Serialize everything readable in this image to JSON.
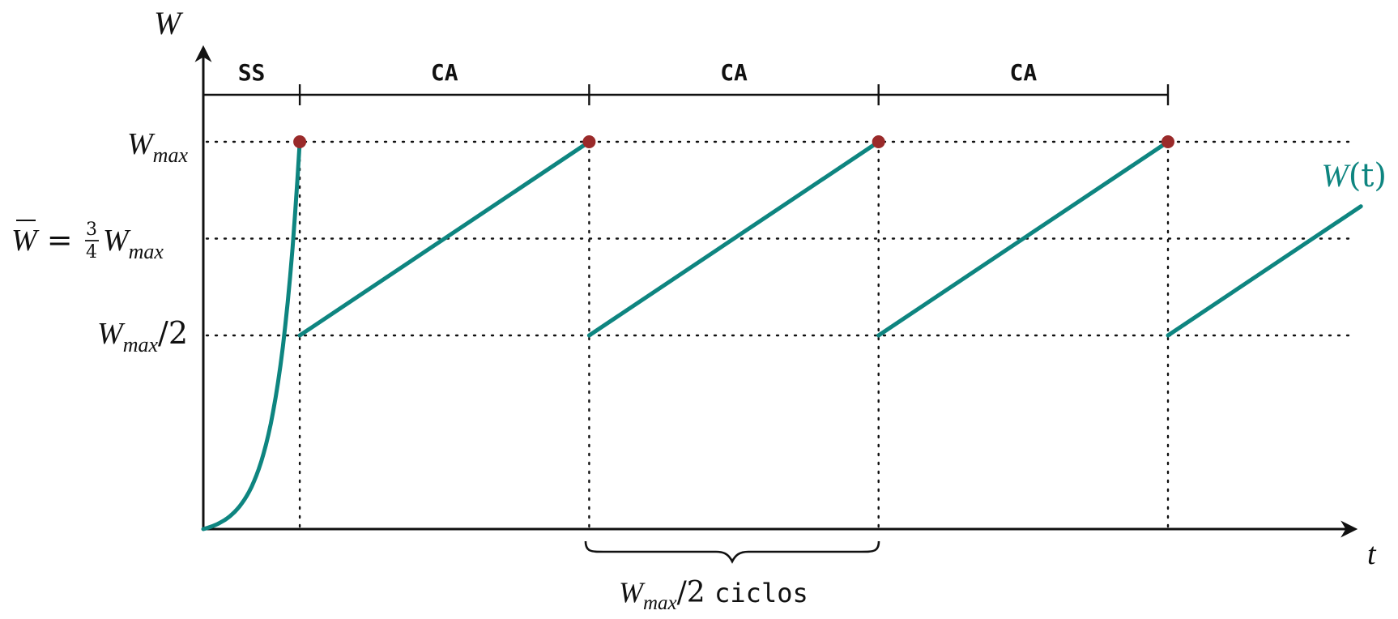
{
  "axes": {
    "y_label": "W",
    "x_label": "t"
  },
  "levels": [
    {
      "id": "wmax",
      "base": "W",
      "sub": "max",
      "suffix": "",
      "value": 1.0
    },
    {
      "id": "wbar",
      "bar_base": "W",
      "eq": " = ",
      "frac_num": "3",
      "frac_den": "4",
      "base": "W",
      "sub": "max",
      "value": 0.75
    },
    {
      "id": "whalf",
      "base": "W",
      "sub": "max",
      "suffix": "/2",
      "value": 0.5
    }
  ],
  "phases": [
    "SS",
    "CA",
    "CA",
    "CA"
  ],
  "brace": {
    "base": "W",
    "sub": "max",
    "suffix": "/2 ",
    "text": "ciclos"
  },
  "series": {
    "name_base": "W",
    "name_rest": "(t)",
    "color": "#0e8580"
  },
  "peak_color": "#9a2a2a",
  "chart_data": {
    "type": "line",
    "title": "",
    "xlabel": "t",
    "ylabel": "W",
    "grid": false,
    "y_reference_levels": [
      0.5,
      0.75,
      1.0
    ],
    "series": [
      {
        "name": "W(t)",
        "segments": [
          {
            "phase": "SS",
            "x": [
              0,
              1
            ],
            "y": [
              0,
              1.0
            ],
            "shape": "exponential"
          },
          {
            "phase": "CA",
            "x": [
              1,
              4
            ],
            "y": [
              0.5,
              1.0
            ]
          },
          {
            "phase": "CA",
            "x": [
              4,
              7
            ],
            "y": [
              0.5,
              1.0
            ]
          },
          {
            "phase": "CA",
            "x": [
              7,
              10
            ],
            "y": [
              0.5,
              1.0
            ]
          },
          {
            "phase": "CA",
            "x": [
              10,
              12
            ],
            "y": [
              0.5,
              0.8333
            ]
          }
        ]
      }
    ],
    "loss_events_x": [
      1,
      4,
      7,
      10
    ]
  }
}
